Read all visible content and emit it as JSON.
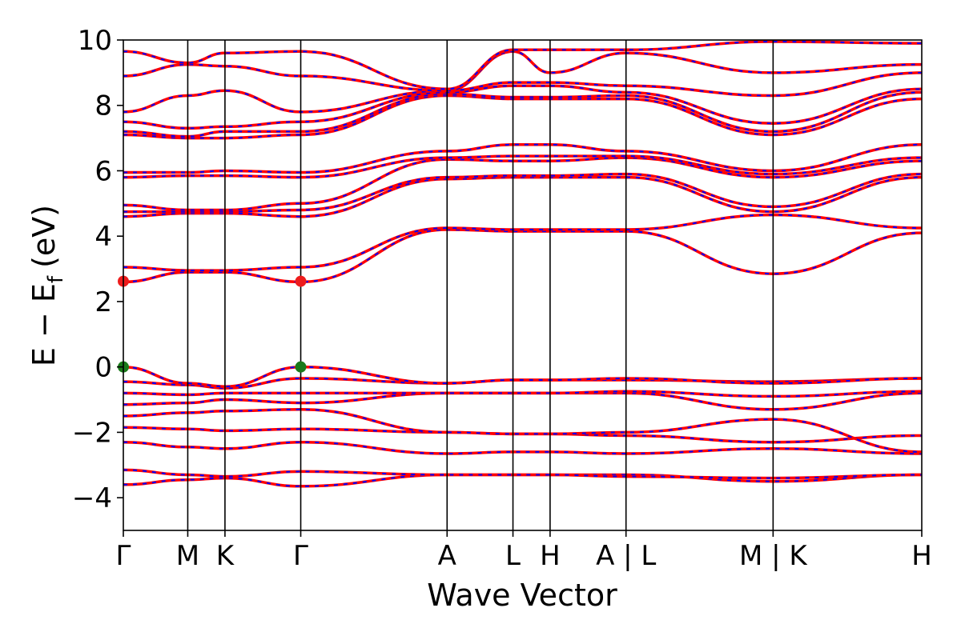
{
  "chart_data": {
    "type": "line",
    "xlabel": "Wave Vector",
    "ylabel": "E − E",
    "ylabel_subscript": "f",
    "ylabel_unit": "(eV)",
    "ylim": [
      -5,
      10
    ],
    "yticks": [
      {
        "value": -4,
        "label": "−4"
      },
      {
        "value": -2,
        "label": "−2"
      },
      {
        "value": 0,
        "label": "0"
      },
      {
        "value": 2,
        "label": "2"
      },
      {
        "value": 4,
        "label": "4"
      },
      {
        "value": 6,
        "label": "6"
      },
      {
        "value": 8,
        "label": "8"
      },
      {
        "value": 10,
        "label": "10"
      }
    ],
    "kpath": [
      {
        "pos": 0.0,
        "label": "Γ"
      },
      {
        "pos": 0.0807,
        "label": "M"
      },
      {
        "pos": 0.1273,
        "label": "K"
      },
      {
        "pos": 0.2222,
        "label": "Γ"
      },
      {
        "pos": 0.4055,
        "label": "A"
      },
      {
        "pos": 0.488,
        "label": "L"
      },
      {
        "pos": 0.5345,
        "label": "H"
      },
      {
        "pos": 0.6296,
        "label": "A | L"
      },
      {
        "pos": 0.8138,
        "label": "M | K"
      },
      {
        "pos": 1.0,
        "label": "H"
      }
    ],
    "grid": false,
    "legend": "none",
    "series_style": {
      "red": "#ff0000",
      "blue": "#0000ff"
    },
    "markers": [
      {
        "name": "VBM",
        "color": "#1a7a1a",
        "points": [
          [
            0.0,
            0.0
          ],
          [
            0.2222,
            0.0
          ]
        ]
      },
      {
        "name": "CBM",
        "color": "#ee1c1c",
        "points": [
          [
            0.0,
            2.62
          ],
          [
            0.2222,
            2.62
          ]
        ]
      }
    ],
    "bands": [
      [
        -3.6,
        -3.45,
        -3.4,
        -3.65,
        -3.3,
        -3.3,
        -3.3,
        -3.3,
        -3.5,
        -3.3
      ],
      [
        -3.15,
        -3.3,
        -3.35,
        -3.2,
        -3.3,
        -3.3,
        -3.3,
        -3.35,
        -3.4,
        -3.3
      ],
      [
        -2.3,
        -2.45,
        -2.5,
        -2.3,
        -2.65,
        -2.6,
        -2.6,
        -2.65,
        -2.5,
        -2.65
      ],
      [
        -1.85,
        -1.9,
        -1.95,
        -1.9,
        -2.0,
        -2.05,
        -2.05,
        -2.1,
        -2.3,
        -2.1
      ],
      [
        -1.5,
        -1.4,
        -1.35,
        -1.3,
        -2.0,
        -2.05,
        -2.05,
        -2.0,
        -1.6,
        -2.6
      ],
      [
        -1.15,
        -1.1,
        -1.0,
        -1.1,
        -0.8,
        -0.8,
        -0.8,
        -0.8,
        -1.3,
        -0.8
      ],
      [
        -0.8,
        -0.85,
        -0.8,
        -0.8,
        -0.8,
        -0.8,
        -0.8,
        -0.75,
        -0.9,
        -0.75
      ],
      [
        -0.45,
        -0.55,
        -0.65,
        -0.35,
        -0.5,
        -0.4,
        -0.4,
        -0.4,
        -0.45,
        -0.35
      ],
      [
        0.0,
        -0.5,
        -0.6,
        0.0,
        -0.5,
        -0.4,
        -0.4,
        -0.35,
        -0.5,
        -0.35
      ],
      [
        2.6,
        2.9,
        2.9,
        2.6,
        4.2,
        4.15,
        4.15,
        4.15,
        2.85,
        4.1
      ],
      [
        3.05,
        2.95,
        2.95,
        3.05,
        4.25,
        4.2,
        4.2,
        4.2,
        4.65,
        4.25
      ],
      [
        4.6,
        4.7,
        4.7,
        4.6,
        5.75,
        5.8,
        5.8,
        5.8,
        4.75,
        5.8
      ],
      [
        4.75,
        4.75,
        4.75,
        4.8,
        5.8,
        5.85,
        5.85,
        5.9,
        4.9,
        5.9
      ],
      [
        4.95,
        4.8,
        4.8,
        5.0,
        6.35,
        6.3,
        6.3,
        6.4,
        5.8,
        6.3
      ],
      [
        5.8,
        5.85,
        5.85,
        5.8,
        6.4,
        6.45,
        6.45,
        6.45,
        5.9,
        6.4
      ],
      [
        5.95,
        5.95,
        6.0,
        5.95,
        6.6,
        6.8,
        6.8,
        6.6,
        6.0,
        6.8
      ],
      [
        7.1,
        7.0,
        7.0,
        7.1,
        8.3,
        8.2,
        8.2,
        8.2,
        7.1,
        8.2
      ],
      [
        7.2,
        7.05,
        7.2,
        7.2,
        8.35,
        8.25,
        8.25,
        8.3,
        7.2,
        8.4
      ],
      [
        7.5,
        7.3,
        7.35,
        7.5,
        8.4,
        8.6,
        8.6,
        8.4,
        7.45,
        8.5
      ],
      [
        7.8,
        8.3,
        8.45,
        7.8,
        8.45,
        8.7,
        8.7,
        8.6,
        8.3,
        9.0
      ],
      [
        8.9,
        9.25,
        9.2,
        8.9,
        8.45,
        9.65,
        9.0,
        9.6,
        9.0,
        9.25
      ],
      [
        9.65,
        9.3,
        9.6,
        9.65,
        8.5,
        9.7,
        9.7,
        9.7,
        9.95,
        9.9
      ]
    ]
  }
}
